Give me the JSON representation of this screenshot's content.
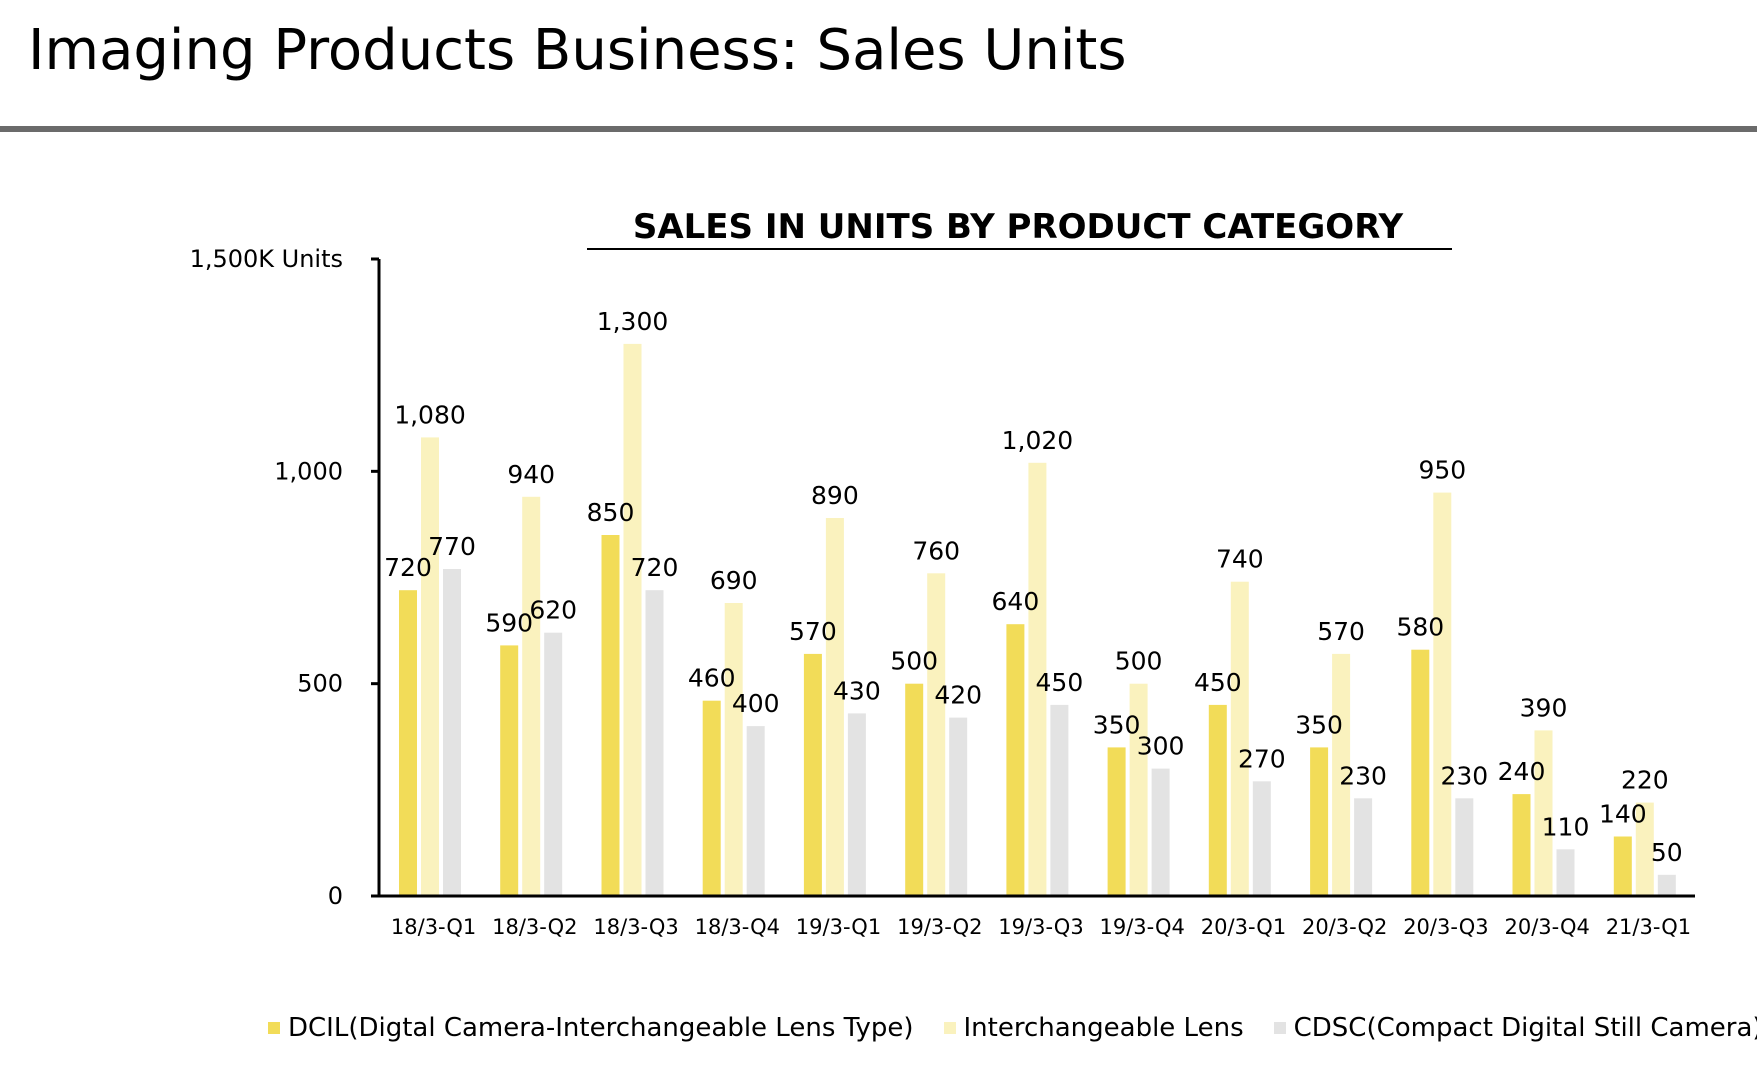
{
  "page": {
    "title": "Imaging Products Business: Sales Units"
  },
  "chart_data": {
    "type": "bar",
    "title": "SALES IN UNITS BY PRODUCT CATEGORY",
    "ylabel": "",
    "xlabel": "",
    "ylim": [
      0,
      1500
    ],
    "yticks": [
      {
        "value": 0,
        "label": "0"
      },
      {
        "value": 500,
        "label": "500"
      },
      {
        "value": 1000,
        "label": "1,000"
      },
      {
        "value": 1500,
        "label": "1,500K Units"
      }
    ],
    "categories": [
      "18/3-Q1",
      "18/3-Q2",
      "18/3-Q3",
      "18/3-Q4",
      "19/3-Q1",
      "19/3-Q2",
      "19/3-Q3",
      "19/3-Q4",
      "20/3-Q1",
      "20/3-Q2",
      "20/3-Q3",
      "20/3-Q4",
      "21/3-Q1"
    ],
    "series": [
      {
        "name": "DCIL(Digtal Camera-Interchangeable Lens Type)",
        "color": "#f2dc58",
        "values": [
          720,
          590,
          850,
          460,
          570,
          500,
          640,
          350,
          450,
          350,
          580,
          240,
          140
        ],
        "labels": [
          "720",
          "590",
          "850",
          "460",
          "570",
          "500",
          "640",
          "350",
          "450",
          "350",
          "580",
          "240",
          "140"
        ]
      },
      {
        "name": "Interchangeable Lens",
        "color": "#faf2be",
        "values": [
          1080,
          940,
          1300,
          690,
          890,
          760,
          1020,
          500,
          740,
          570,
          950,
          390,
          220
        ],
        "labels": [
          "1,080",
          "940",
          "1,300",
          "690",
          "890",
          "760",
          "1,020",
          "500",
          "740",
          "570",
          "950",
          "390",
          "220"
        ]
      },
      {
        "name": "CDSC(Compact Digital Still Camera)",
        "color": "#e3e3e3",
        "values": [
          770,
          620,
          720,
          400,
          430,
          420,
          450,
          300,
          270,
          230,
          230,
          110,
          50
        ],
        "labels": [
          "770",
          "620",
          "720",
          "400",
          "430",
          "420",
          "450",
          "300",
          "270",
          "230",
          "230",
          "110",
          "50"
        ]
      }
    ],
    "grid": false,
    "legend_position": "bottom"
  }
}
